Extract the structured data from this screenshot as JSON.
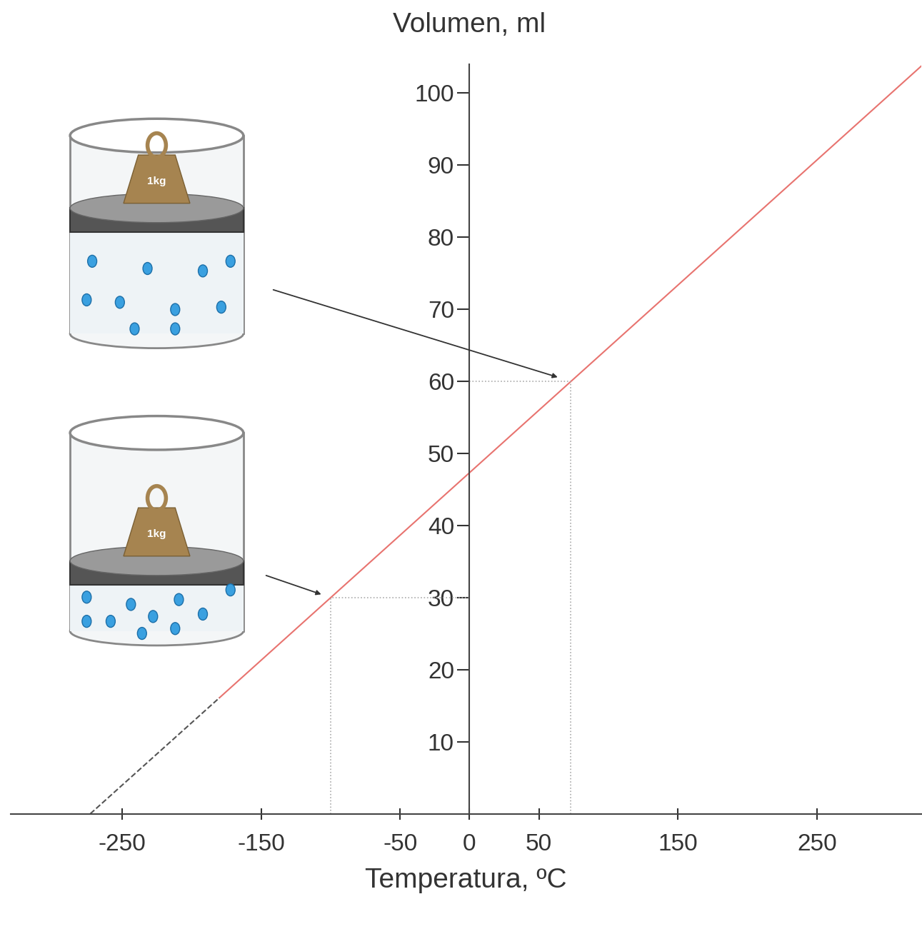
{
  "chart_data": {
    "type": "line",
    "x_label": "Temperatura, ºC",
    "y_label": "Volumen, ml",
    "xlim": [
      -330,
      325
    ],
    "ylim": [
      0,
      104
    ],
    "xticks": [
      -250,
      -150,
      -50,
      0,
      50,
      150,
      250
    ],
    "yticks": [
      10,
      20,
      30,
      40,
      50,
      60,
      70,
      80,
      90,
      100
    ],
    "grid": false,
    "series": [
      {
        "x": [
          -180,
          325
        ],
        "values": [
          16.1,
          103.7
        ],
        "color": "#e8736f",
        "line_style": "solid"
      },
      {
        "x": [
          -273,
          -180
        ],
        "values": [
          0,
          16.1
        ],
        "color": "#555555",
        "line_style": "dashed"
      }
    ],
    "points": [
      {
        "x": -100,
        "y": 30
      },
      {
        "x": 73,
        "y": 60
      }
    ],
    "annotations": [
      "1kg",
      "1kg"
    ]
  }
}
